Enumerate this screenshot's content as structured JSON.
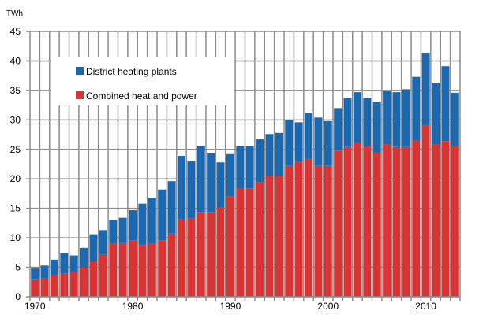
{
  "chart_data": {
    "type": "bar",
    "stacked": true,
    "ylabel": "TWh",
    "ylim": [
      0,
      45
    ],
    "yticks": [
      0,
      5,
      10,
      15,
      20,
      25,
      30,
      35,
      40,
      45
    ],
    "xtick_labels": [
      "1970",
      "1980",
      "1990",
      "2000",
      "2010"
    ],
    "grid": true,
    "legend": "top-left",
    "categories": [
      1970,
      1971,
      1972,
      1973,
      1974,
      1975,
      1976,
      1977,
      1978,
      1979,
      1980,
      1981,
      1982,
      1983,
      1984,
      1985,
      1986,
      1987,
      1988,
      1989,
      1990,
      1991,
      1992,
      1993,
      1994,
      1995,
      1996,
      1997,
      1998,
      1999,
      2000,
      2001,
      2002,
      2003,
      2004,
      2005,
      2006,
      2007,
      2008,
      2009,
      2010,
      2011,
      2012,
      2013
    ],
    "series": [
      {
        "name": "Combined heat and power",
        "color": "#d93333",
        "values": [
          2.9,
          3.2,
          3.7,
          3.9,
          4.2,
          5.0,
          6.1,
          7.2,
          9.0,
          9.1,
          9.6,
          8.8,
          9.0,
          9.6,
          10.7,
          13.1,
          13.3,
          14.4,
          14.4,
          15.1,
          17.0,
          18.3,
          18.4,
          19.4,
          20.5,
          20.5,
          22.2,
          23.0,
          23.5,
          22.2,
          22.2,
          24.8,
          25.4,
          26.1,
          25.5,
          24.5,
          25.9,
          25.4,
          25.4,
          26.5,
          29.0,
          25.9,
          26.4,
          25.6
        ]
      },
      {
        "name": "District heating plants",
        "color": "#1a68b0",
        "values": [
          1.9,
          2.1,
          2.6,
          3.5,
          2.8,
          3.3,
          4.5,
          4.1,
          4.0,
          4.3,
          5.1,
          7.0,
          7.8,
          8.6,
          8.9,
          10.8,
          9.7,
          11.2,
          9.9,
          7.7,
          7.2,
          7.2,
          7.2,
          7.3,
          7.1,
          7.3,
          7.8,
          6.6,
          7.7,
          8.2,
          7.6,
          7.2,
          8.3,
          8.6,
          8.2,
          8.5,
          9.0,
          9.3,
          9.8,
          10.8,
          12.4,
          10.3,
          12.7,
          9.0
        ]
      }
    ]
  }
}
